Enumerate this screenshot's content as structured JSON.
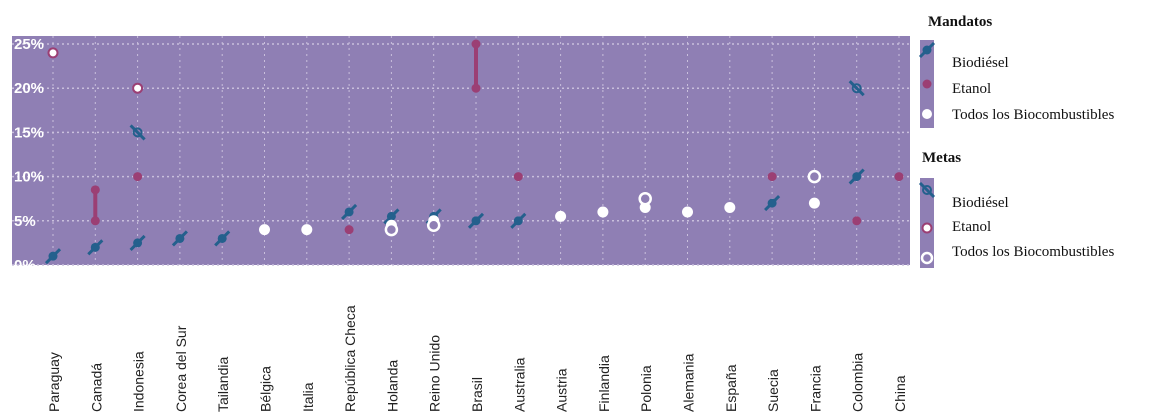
{
  "colors": {
    "plot_bg": "#8f7fb4",
    "grid": "#c9bfdc",
    "biodiesel": "#24608d",
    "etanol": "#9b3f74",
    "todos": "#ffffff"
  },
  "chart_data": {
    "type": "scatter",
    "ylim": [
      0,
      25
    ],
    "y_ticks": [
      "0%",
      "5%",
      "10%",
      "15%",
      "20%",
      "25%"
    ],
    "y_tick_values": [
      0,
      5,
      10,
      15,
      20,
      25
    ],
    "categories": [
      "Paraguay",
      "Canadá",
      "Indonesia",
      "Corea del Sur",
      "Tailandia",
      "Bélgica",
      "Italia",
      "República Checa",
      "Holanda",
      "Reino Unido",
      "Brasil",
      "Australia",
      "Austria",
      "Finlandia",
      "Polonia",
      "Alemania",
      "España",
      "Suecia",
      "Francia",
      "Colombia",
      "China"
    ],
    "grid": true,
    "legend_position": "right",
    "legend": {
      "mandatos_title": "Mandatos",
      "metas_title": "Metas",
      "mandatos": [
        "Biodiésel",
        "Etanol",
        "Todos los Biocombustibles"
      ],
      "metas": [
        "Biodiésel",
        "Etanol",
        "Todos los Biocombustibles"
      ]
    },
    "series": [
      {
        "name": "Mandatos Biodiésel",
        "kind": "mandate",
        "fuel": "biodiesel",
        "points": [
          [
            0,
            1
          ],
          [
            1,
            2
          ],
          [
            2,
            2.5
          ],
          [
            3,
            3
          ],
          [
            4,
            3
          ],
          [
            7,
            6
          ],
          [
            8,
            5.5
          ],
          [
            9,
            5.5
          ],
          [
            10,
            5
          ],
          [
            11,
            5
          ],
          [
            17,
            7
          ],
          [
            19,
            10
          ]
        ]
      },
      {
        "name": "Mandatos Etanol",
        "kind": "mandate",
        "fuel": "etanol",
        "points": [
          [
            1,
            5
          ],
          [
            1,
            8.5
          ],
          [
            2,
            10
          ],
          [
            7,
            4
          ],
          [
            10,
            20
          ],
          [
            10,
            25
          ],
          [
            11,
            10
          ],
          [
            17,
            10
          ],
          [
            19,
            5
          ],
          [
            20,
            10
          ]
        ]
      },
      {
        "name": "Mandatos Todos los Biocombustibles",
        "kind": "mandate",
        "fuel": "todos",
        "points": [
          [
            5,
            4
          ],
          [
            6,
            4
          ],
          [
            8,
            4.5
          ],
          [
            9,
            5
          ],
          [
            12,
            5.5
          ],
          [
            13,
            6
          ],
          [
            14,
            6.5
          ],
          [
            15,
            6
          ],
          [
            16,
            6.5
          ],
          [
            18,
            7
          ]
        ]
      },
      {
        "name": "Metas Biodiésel",
        "kind": "target",
        "fuel": "biodiesel",
        "points": [
          [
            2,
            15
          ],
          [
            19,
            20
          ]
        ]
      },
      {
        "name": "Metas Etanol",
        "kind": "target",
        "fuel": "etanol",
        "points": [
          [
            0,
            24
          ],
          [
            2,
            20
          ]
        ]
      },
      {
        "name": "Metas Todos los Biocombustibles",
        "kind": "target",
        "fuel": "todos",
        "points": [
          [
            8,
            4
          ],
          [
            9,
            4.5
          ],
          [
            14,
            7.5
          ],
          [
            18,
            10
          ]
        ]
      }
    ],
    "ranges": [
      {
        "category": 1,
        "from": 5,
        "to": 8.5
      },
      {
        "category": 10,
        "from": 20,
        "to": 25
      }
    ]
  }
}
